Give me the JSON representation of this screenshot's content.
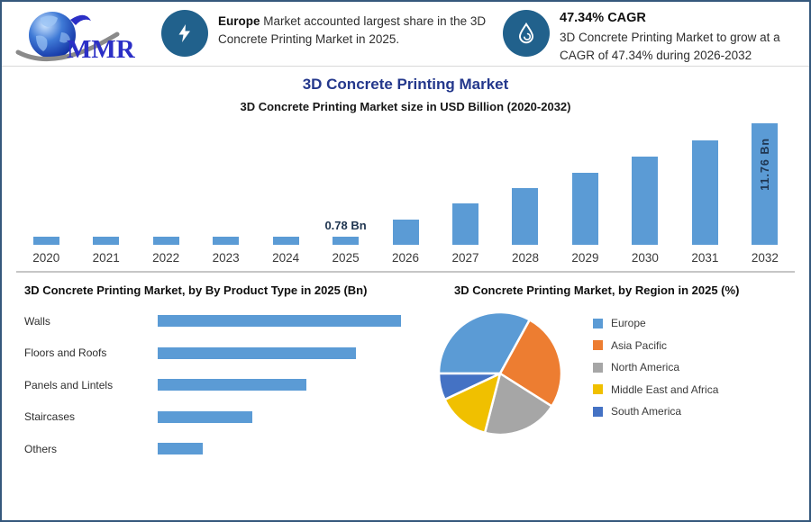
{
  "header": {
    "logo_text": "MMR",
    "logo_icon": "globe-swoosh-logo",
    "callout1": {
      "icon": "lightning-icon",
      "bold": "Europe",
      "text": " Market accounted largest share in the 3D Concrete Printing Market in 2025."
    },
    "callout2": {
      "icon": "droplet-icon",
      "heading": "47.34% CAGR",
      "text": "3D Concrete Printing Market to grow at a CAGR of 47.34% during 2026-2032"
    }
  },
  "title": "3D Concrete Printing Market",
  "subtitle": "3D Concrete Printing Market size in USD Billion (2020-2032)",
  "colors": {
    "accent_navy": "#24388C",
    "bar_blue": "#5B9BD5",
    "icon_circle_blue": "#21618C",
    "page_border": "#35587C",
    "value_label": "#1F3550"
  },
  "chart_data": [
    {
      "type": "bar",
      "title": "3D Concrete Printing Market size in USD Billion (2020-2032)",
      "categories": [
        "2020",
        "2021",
        "2022",
        "2023",
        "2024",
        "2025",
        "2026",
        "2027",
        "2028",
        "2029",
        "2030",
        "2031",
        "2032"
      ],
      "values": [
        0.78,
        0.78,
        0.78,
        0.78,
        0.78,
        0.78,
        2.45,
        4.0,
        5.5,
        7.0,
        8.5,
        10.1,
        11.76
      ],
      "value_labels": {
        "2025": {
          "text": "0.78 Bn",
          "position": "above"
        },
        "2032": {
          "text": "11.76 Bn",
          "position": "inside-vertical"
        }
      },
      "bar_color": "#5B9BD5",
      "xlabel": "",
      "ylabel": "USD Billion",
      "ylim": [
        0,
        11.76
      ],
      "grid": false,
      "legend_position": "none"
    },
    {
      "type": "bar",
      "orientation": "horizontal",
      "title": "3D Concrete Printing Market, by By Product Type in 2025 (Bn)",
      "categories": [
        "Walls",
        "Floors and Roofs",
        "Panels and Lintels",
        "Staircases",
        "Others"
      ],
      "values": [
        0.27,
        0.22,
        0.165,
        0.105,
        0.05
      ],
      "bar_color": "#5B9BD5",
      "xlabel": "Bn",
      "ylabel": "",
      "grid": false,
      "legend_position": "none"
    },
    {
      "type": "pie",
      "title": "3D Concrete Printing Market, by Region in 2025 (%)",
      "labels": [
        "Europe",
        "Asia Pacific",
        "North America",
        "Middle East and Africa",
        "South America"
      ],
      "values": [
        33,
        26,
        20,
        14,
        7
      ],
      "colors": [
        "#5B9BD5",
        "#ED7D31",
        "#A6A6A6",
        "#F0C000",
        "#4472C4"
      ],
      "start_angle_clock_deg": 270,
      "legend_position": "right"
    }
  ]
}
